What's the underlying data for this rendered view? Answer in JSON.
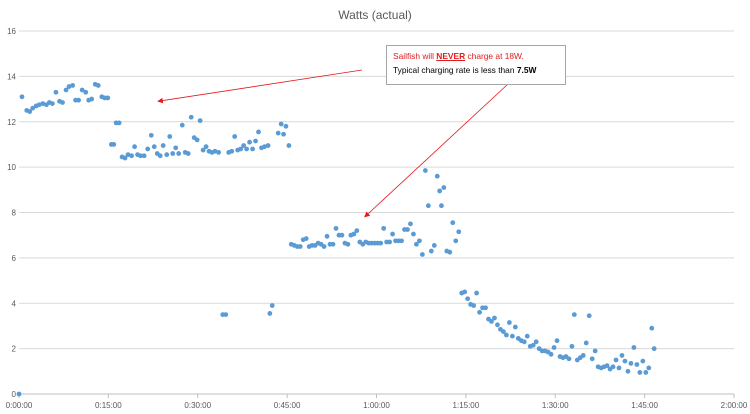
{
  "chart_data": {
    "type": "scatter",
    "title": "Watts (actual)",
    "xlabel": "",
    "ylabel": "",
    "x_unit": "minutes",
    "xlim": [
      0,
      120
    ],
    "ylim": [
      0,
      16
    ],
    "y_ticks": [
      "0",
      "2",
      "4",
      "6",
      "8",
      "10",
      "12",
      "14",
      "16"
    ],
    "x_ticks": [
      "0:00:00",
      "0:15:00",
      "0:30:00",
      "0:45:00",
      "1:00:00",
      "1:15:00",
      "1:30:00",
      "1:45:00",
      "2:00:00"
    ],
    "grid": true,
    "legend": "none",
    "marker_color": "#5b9bd5",
    "series": [
      {
        "values": [
          [
            0,
            0
          ],
          [
            0.5,
            13.1
          ],
          [
            1.3,
            12.5
          ],
          [
            1.8,
            12.45
          ],
          [
            2.3,
            12.6
          ],
          [
            2.9,
            12.7
          ],
          [
            3.4,
            12.75
          ],
          [
            4,
            12.8
          ],
          [
            4.6,
            12.75
          ],
          [
            5.1,
            12.85
          ],
          [
            5.6,
            12.8
          ],
          [
            6.2,
            13.3
          ],
          [
            6.8,
            12.9
          ],
          [
            7.3,
            12.85
          ],
          [
            7.9,
            13.4
          ],
          [
            8.4,
            13.55
          ],
          [
            9,
            13.6
          ],
          [
            9.5,
            12.95
          ],
          [
            10,
            12.95
          ],
          [
            10.6,
            13.4
          ],
          [
            11.2,
            13.3
          ],
          [
            11.7,
            12.95
          ],
          [
            12.2,
            13.0
          ],
          [
            12.8,
            13.65
          ],
          [
            13.3,
            13.6
          ],
          [
            13.9,
            13.1
          ],
          [
            14.4,
            13.05
          ],
          [
            14.9,
            13.05
          ],
          [
            15.5,
            11.0
          ],
          [
            15.9,
            11.0
          ],
          [
            16.3,
            11.95
          ],
          [
            16.8,
            11.95
          ],
          [
            17.3,
            10.45
          ],
          [
            17.8,
            10.4
          ],
          [
            18.3,
            10.55
          ],
          [
            18.9,
            10.5
          ],
          [
            19.4,
            10.9
          ],
          [
            19.9,
            10.55
          ],
          [
            20.4,
            10.5
          ],
          [
            21,
            10.5
          ],
          [
            21.6,
            10.8
          ],
          [
            22.2,
            11.4
          ],
          [
            22.7,
            10.9
          ],
          [
            23.2,
            10.6
          ],
          [
            23.7,
            10.5
          ],
          [
            24.2,
            10.95
          ],
          [
            24.8,
            10.55
          ],
          [
            25.3,
            11.35
          ],
          [
            25.8,
            10.6
          ],
          [
            26.3,
            10.85
          ],
          [
            26.8,
            10.6
          ],
          [
            27.4,
            11.85
          ],
          [
            27.9,
            10.65
          ],
          [
            28.4,
            10.6
          ],
          [
            28.9,
            12.2
          ],
          [
            29.4,
            11.3
          ],
          [
            29.9,
            11.2
          ],
          [
            30.4,
            12.05
          ],
          [
            30.9,
            10.75
          ],
          [
            31.4,
            10.9
          ],
          [
            31.9,
            10.7
          ],
          [
            32.4,
            10.65
          ],
          [
            32.9,
            10.7
          ],
          [
            33.5,
            10.65
          ],
          [
            34.2,
            3.5
          ],
          [
            34.7,
            3.5
          ],
          [
            35.2,
            10.65
          ],
          [
            35.7,
            10.7
          ],
          [
            36.2,
            11.35
          ],
          [
            36.7,
            10.75
          ],
          [
            37.2,
            10.8
          ],
          [
            37.7,
            10.95
          ],
          [
            38.2,
            10.8
          ],
          [
            38.7,
            11.1
          ],
          [
            39.2,
            10.8
          ],
          [
            39.7,
            11.15
          ],
          [
            40.2,
            11.55
          ],
          [
            40.7,
            10.85
          ],
          [
            41.2,
            10.9
          ],
          [
            41.8,
            10.95
          ],
          [
            42.1,
            3.55
          ],
          [
            42.5,
            3.9
          ],
          [
            43.5,
            11.5
          ],
          [
            44.0,
            11.9
          ],
          [
            44.4,
            11.45
          ],
          [
            44.8,
            11.8
          ],
          [
            45.3,
            10.95
          ],
          [
            45.7,
            6.6
          ],
          [
            46.2,
            6.55
          ],
          [
            46.7,
            6.5
          ],
          [
            47.2,
            6.5
          ],
          [
            47.7,
            6.8
          ],
          [
            48.2,
            6.85
          ],
          [
            48.7,
            6.5
          ],
          [
            49.2,
            6.55
          ],
          [
            49.7,
            6.55
          ],
          [
            50.2,
            6.65
          ],
          [
            50.7,
            6.6
          ],
          [
            51.2,
            6.5
          ],
          [
            51.7,
            6.95
          ],
          [
            52.2,
            6.6
          ],
          [
            52.7,
            6.6
          ],
          [
            53.2,
            7.3
          ],
          [
            53.7,
            7.0
          ],
          [
            54.2,
            7.0
          ],
          [
            54.7,
            6.65
          ],
          [
            55.2,
            6.6
          ],
          [
            55.7,
            7.0
          ],
          [
            56.2,
            7.05
          ],
          [
            56.7,
            7.2
          ],
          [
            57.2,
            6.7
          ],
          [
            57.7,
            6.6
          ],
          [
            58.2,
            6.7
          ],
          [
            58.7,
            6.65
          ],
          [
            59.2,
            6.65
          ],
          [
            59.7,
            6.65
          ],
          [
            60.2,
            6.65
          ],
          [
            60.7,
            6.65
          ],
          [
            61.2,
            7.3
          ],
          [
            61.7,
            6.7
          ],
          [
            62.2,
            6.7
          ],
          [
            62.7,
            7.05
          ],
          [
            63.2,
            6.75
          ],
          [
            63.7,
            6.75
          ],
          [
            64.2,
            6.75
          ],
          [
            64.7,
            7.25
          ],
          [
            65.2,
            7.25
          ],
          [
            65.7,
            7.5
          ],
          [
            66.2,
            7.05
          ],
          [
            66.7,
            6.6
          ],
          [
            67.2,
            6.75
          ],
          [
            67.7,
            6.15
          ],
          [
            68.2,
            9.85
          ],
          [
            68.7,
            8.3
          ],
          [
            69.2,
            6.3
          ],
          [
            69.7,
            6.55
          ],
          [
            70.2,
            9.6
          ],
          [
            70.6,
            8.95
          ],
          [
            70.9,
            8.3
          ],
          [
            71.3,
            9.1
          ],
          [
            71.8,
            6.3
          ],
          [
            72.3,
            6.25
          ],
          [
            72.8,
            7.55
          ],
          [
            73.3,
            6.75
          ],
          [
            73.8,
            7.15
          ],
          [
            74.3,
            4.45
          ],
          [
            74.8,
            4.5
          ],
          [
            75.3,
            4.2
          ],
          [
            75.8,
            3.95
          ],
          [
            76.3,
            3.9
          ],
          [
            76.8,
            4.45
          ],
          [
            77.3,
            3.6
          ],
          [
            77.8,
            3.8
          ],
          [
            78.3,
            3.8
          ],
          [
            78.8,
            3.3
          ],
          [
            79.3,
            3.2
          ],
          [
            79.8,
            3.35
          ],
          [
            80.3,
            3.05
          ],
          [
            80.8,
            2.85
          ],
          [
            81.3,
            2.75
          ],
          [
            81.8,
            2.6
          ],
          [
            82.3,
            3.15
          ],
          [
            82.8,
            2.55
          ],
          [
            83.3,
            2.95
          ],
          [
            83.8,
            2.45
          ],
          [
            84.3,
            2.35
          ],
          [
            84.8,
            2.3
          ],
          [
            85.3,
            2.55
          ],
          [
            85.8,
            2.1
          ],
          [
            86.3,
            2.15
          ],
          [
            86.8,
            2.3
          ],
          [
            87.3,
            2.0
          ],
          [
            87.8,
            1.9
          ],
          [
            88.3,
            1.9
          ],
          [
            88.8,
            1.85
          ],
          [
            89.3,
            1.75
          ],
          [
            89.8,
            2.05
          ],
          [
            90.3,
            2.35
          ],
          [
            90.8,
            1.65
          ],
          [
            91.3,
            1.6
          ],
          [
            91.8,
            1.65
          ],
          [
            92.3,
            1.55
          ],
          [
            92.8,
            2.1
          ],
          [
            93.2,
            3.5
          ],
          [
            93.7,
            1.5
          ],
          [
            94.2,
            1.6
          ],
          [
            94.7,
            1.7
          ],
          [
            95.2,
            2.25
          ],
          [
            95.7,
            3.45
          ],
          [
            96.2,
            1.55
          ],
          [
            96.7,
            1.9
          ],
          [
            97.2,
            1.2
          ],
          [
            97.7,
            1.15
          ],
          [
            98.2,
            1.2
          ],
          [
            98.7,
            1.25
          ],
          [
            99.2,
            1.1
          ],
          [
            99.7,
            1.2
          ],
          [
            100.2,
            1.5
          ],
          [
            100.7,
            1.15
          ],
          [
            101.2,
            1.7
          ],
          [
            101.7,
            1.45
          ],
          [
            102.2,
            1.0
          ],
          [
            102.7,
            1.35
          ],
          [
            103.2,
            2.05
          ],
          [
            103.7,
            1.3
          ],
          [
            104.2,
            0.95
          ],
          [
            104.7,
            1.45
          ],
          [
            105.2,
            0.95
          ],
          [
            105.7,
            1.15
          ],
          [
            106.2,
            2.9
          ],
          [
            106.6,
            2.0
          ]
        ]
      }
    ],
    "annotation": {
      "line1_a": "Sailfish will ",
      "line1_em": "NEVER",
      "line1_b": " charge at 18W.",
      "line2_a": "Typical charging rate is less than ",
      "line2_em": "7.5W",
      "arrow_color": "#e31a1c",
      "arrow_targets": [
        [
          23.3,
          12.9
        ],
        [
          58.0,
          7.8
        ]
      ]
    }
  }
}
